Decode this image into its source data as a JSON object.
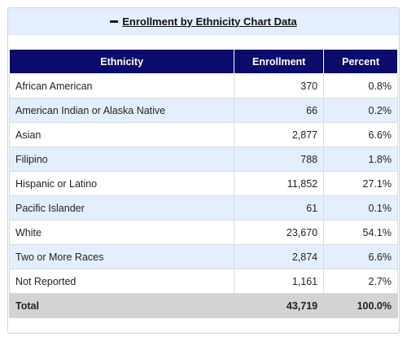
{
  "header": {
    "title": "Enrollment by Ethnicity Chart Data",
    "toggle_icon": "minus-icon"
  },
  "table": {
    "columns": [
      "Ethnicity",
      "Enrollment",
      "Percent"
    ],
    "rows": [
      {
        "ethnicity": "African American",
        "enrollment": "370",
        "percent": "0.8%"
      },
      {
        "ethnicity": "American Indian or Alaska Native",
        "enrollment": "66",
        "percent": "0.2%"
      },
      {
        "ethnicity": "Asian",
        "enrollment": "2,877",
        "percent": "6.6%"
      },
      {
        "ethnicity": "Filipino",
        "enrollment": "788",
        "percent": "1.8%"
      },
      {
        "ethnicity": "Hispanic or Latino",
        "enrollment": "11,852",
        "percent": "27.1%"
      },
      {
        "ethnicity": "Pacific Islander",
        "enrollment": "61",
        "percent": "0.1%"
      },
      {
        "ethnicity": "White",
        "enrollment": "23,670",
        "percent": "54.1%"
      },
      {
        "ethnicity": "Two or More Races",
        "enrollment": "2,874",
        "percent": "6.6%"
      },
      {
        "ethnicity": "Not Reported",
        "enrollment": "1,161",
        "percent": "2.7%"
      }
    ],
    "total": {
      "label": "Total",
      "enrollment": "43,719",
      "percent": "100.0%"
    }
  },
  "colors": {
    "header_bg": "#e3efff",
    "table_head_bg": "#0b0b6b",
    "alt_row_bg": "#e3efff",
    "total_row_bg": "#d3d3d3"
  }
}
